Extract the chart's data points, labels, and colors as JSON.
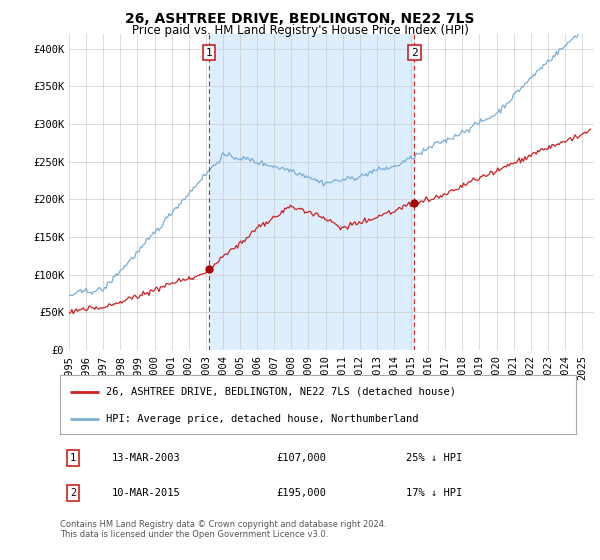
{
  "title": "26, ASHTREE DRIVE, BEDLINGTON, NE22 7LS",
  "subtitle": "Price paid vs. HM Land Registry's House Price Index (HPI)",
  "ylabel_ticks": [
    "£0",
    "£50K",
    "£100K",
    "£150K",
    "£200K",
    "£250K",
    "£300K",
    "£350K",
    "£400K"
  ],
  "ytick_values": [
    0,
    50000,
    100000,
    150000,
    200000,
    250000,
    300000,
    350000,
    400000
  ],
  "ylim": [
    0,
    420000
  ],
  "xlim_start": 1995.0,
  "xlim_end": 2025.7,
  "sale1_x": 2003.2,
  "sale1_y": 107000,
  "sale1_label": "1",
  "sale1_date": "13-MAR-2003",
  "sale1_price": "£107,000",
  "sale1_pct": "25% ↓ HPI",
  "sale2_x": 2015.2,
  "sale2_y": 195000,
  "sale2_label": "2",
  "sale2_date": "10-MAR-2015",
  "sale2_price": "£195,000",
  "sale2_pct": "17% ↓ HPI",
  "line1_color": "#cc2222",
  "line2_color": "#7bafd4",
  "line1_label": "26, ASHTREE DRIVE, BEDLINGTON, NE22 7LS (detached house)",
  "line2_label": "HPI: Average price, detached house, Northumberland",
  "marker_color": "#aa0000",
  "vline_color": "#cc2222",
  "shade_color": "#ddeeff",
  "footer": "Contains HM Land Registry data © Crown copyright and database right 2024.\nThis data is licensed under the Open Government Licence v3.0.",
  "bg_color": "#ffffff",
  "grid_color": "#cccccc",
  "title_fontsize": 10,
  "subtitle_fontsize": 8.5,
  "tick_fontsize": 7.5
}
